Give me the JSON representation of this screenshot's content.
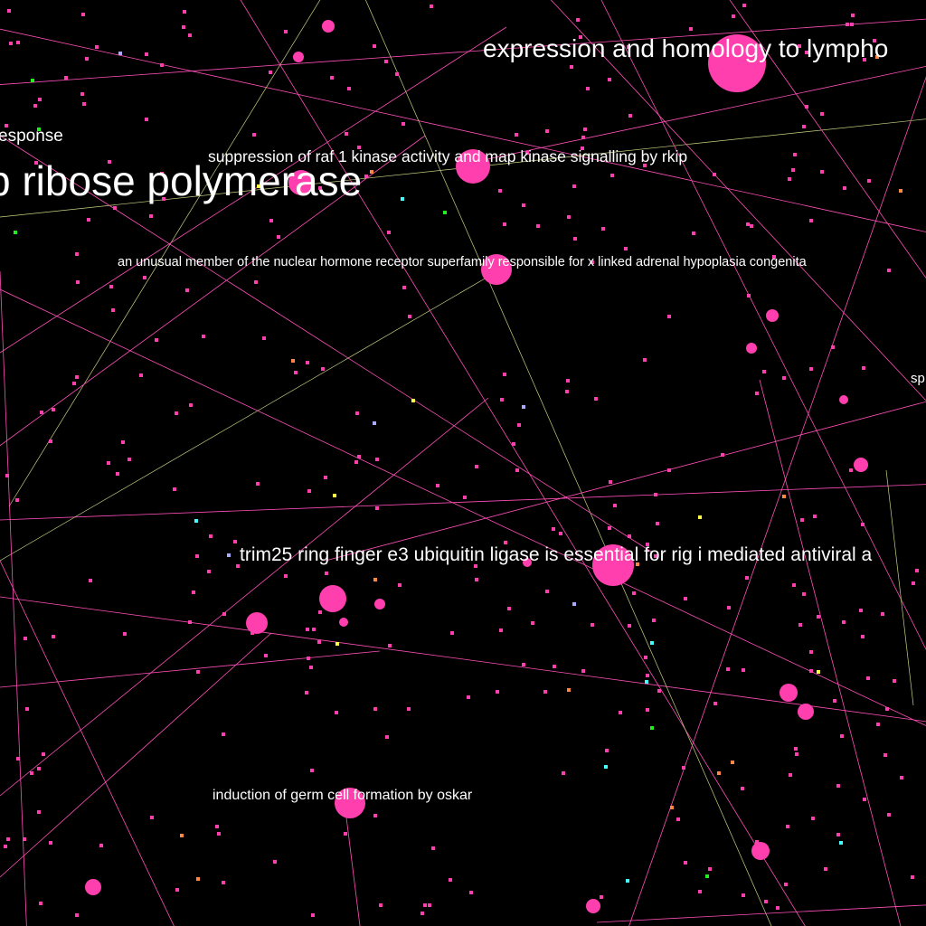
{
  "background_color": "#000000",
  "colors": {
    "node": "#ff3fae",
    "edge": "#ff4fb8",
    "edge_alt": "#c8d080",
    "label": "#ffffff",
    "accent_green": "#22ee22",
    "accent_orange": "#ff8844",
    "accent_yellow": "#ffff44",
    "accent_cyan": "#44ffff",
    "accent_lavender": "#aaaaff"
  },
  "labels": {
    "response": "esponse",
    "ribose": "p ribose polymerase",
    "expression": "expression and homology to lympho",
    "raf": "suppression of raf 1 kinase activity and map kinase signalling by rkip",
    "nuclear": "an unusual member of the nuclear hormone receptor superfamily responsible for x linked adrenal hypoplasia congenita",
    "sp": "sp",
    "trim25": "trim25 ring finger e3 ubiquitin ligase is essential for rig i mediated antiviral a",
    "oskar": "induction of germ cell formation by oskar"
  }
}
